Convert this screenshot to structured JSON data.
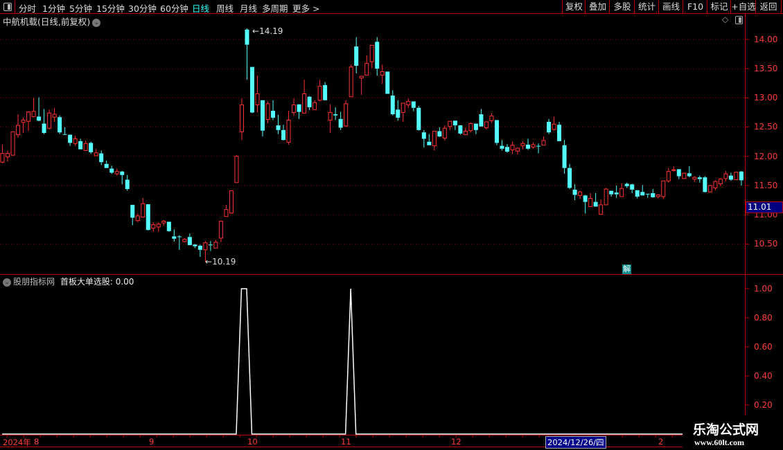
{
  "toolbar": {
    "periods": [
      "分时",
      "1分钟",
      "5分钟",
      "15分钟",
      "30分钟",
      "60分钟",
      "日线",
      "周线",
      "月线",
      "多周期",
      "更多 >"
    ],
    "active_period": "日线",
    "right_buttons": [
      "复权",
      "叠加",
      "多股",
      "统计",
      "画线",
      "F10",
      "标记",
      "+自选",
      "返回"
    ]
  },
  "main": {
    "title": "中航机载(日线,前复权)",
    "high_label": "14.19",
    "low_label": "10.19",
    "current_price": "11.01",
    "badge": "解",
    "price_ticks": [
      "14.00",
      "13.50",
      "13.00",
      "12.50",
      "12.00",
      "11.50",
      "11.00",
      "10.50"
    ]
  },
  "indicator": {
    "source": "股朋指标网",
    "name": "首板大单选股: 0.00",
    "ticks": [
      "1.00",
      "0.80",
      "0.60",
      "0.40",
      "0.20"
    ]
  },
  "date_axis": {
    "labels": [
      "2024年",
      "8",
      "9",
      "10",
      "11",
      "12",
      "2"
    ],
    "highlight": "2024/12/26/四"
  },
  "watermark": {
    "title": "乐淘公式网",
    "url": "www.60lt.com"
  },
  "colors": {
    "up": "#ff3232",
    "down": "#54ffff",
    "grid": "#8b0000",
    "axis": "#c00000",
    "indicator_line": "#ffffff"
  },
  "chart_data": [
    {
      "type": "candlestick",
      "fields": [
        "open",
        "close",
        "high",
        "low"
      ],
      "ylim": [
        10.0,
        14.3
      ],
      "grid": true,
      "candles": [
        [
          11.9,
          12.05,
          12.2,
          11.88
        ],
        [
          11.99,
          12.05,
          12.1,
          11.91
        ],
        [
          12.02,
          12.42,
          12.43,
          12.01
        ],
        [
          12.37,
          12.53,
          12.72,
          12.32
        ],
        [
          12.58,
          12.62,
          12.66,
          12.4
        ],
        [
          12.6,
          12.76,
          12.77,
          12.43
        ],
        [
          12.68,
          12.77,
          13.0,
          12.67
        ],
        [
          12.68,
          12.61,
          13.01,
          12.6
        ],
        [
          12.56,
          12.4,
          12.81,
          12.38
        ],
        [
          12.48,
          12.74,
          12.8,
          12.46
        ],
        [
          12.67,
          12.72,
          12.83,
          12.59
        ],
        [
          12.67,
          12.41,
          12.7,
          12.38
        ],
        [
          12.38,
          12.37,
          12.5,
          12.37
        ],
        [
          12.37,
          12.23,
          12.37,
          12.18
        ],
        [
          12.22,
          12.3,
          12.35,
          12.18
        ],
        [
          12.26,
          12.12,
          12.3,
          12.12
        ],
        [
          12.1,
          12.22,
          12.27,
          12.09
        ],
        [
          12.23,
          12.07,
          12.25,
          12.04
        ],
        [
          12.01,
          12.06,
          12.13,
          12.01
        ],
        [
          12.05,
          11.9,
          12.1,
          11.85
        ],
        [
          11.87,
          11.8,
          11.93,
          11.8
        ],
        [
          11.79,
          11.72,
          11.84,
          11.7
        ],
        [
          11.7,
          11.74,
          11.79,
          11.67
        ],
        [
          11.74,
          11.68,
          11.75,
          11.52
        ],
        [
          11.6,
          11.44,
          11.68,
          11.41
        ],
        [
          11.17,
          10.95,
          11.17,
          10.82
        ],
        [
          10.9,
          10.98,
          11.02,
          10.87
        ],
        [
          10.96,
          11.19,
          11.29,
          10.96
        ],
        [
          11.18,
          10.74,
          11.18,
          10.73
        ],
        [
          10.77,
          10.83,
          10.87,
          10.71
        ],
        [
          10.79,
          10.84,
          10.87,
          10.71
        ],
        [
          10.86,
          10.89,
          10.91,
          10.82
        ],
        [
          10.88,
          10.72,
          10.88,
          10.71
        ],
        [
          10.63,
          10.59,
          10.75,
          10.54
        ],
        [
          10.63,
          10.62,
          10.65,
          10.4
        ],
        [
          10.54,
          10.58,
          10.6,
          10.53
        ],
        [
          10.62,
          10.48,
          10.68,
          10.48
        ],
        [
          10.49,
          10.46,
          10.5,
          10.43
        ],
        [
          10.47,
          10.4,
          10.49,
          10.28
        ],
        [
          10.4,
          10.52,
          10.55,
          10.19
        ],
        [
          10.49,
          10.48,
          10.55,
          10.38
        ],
        [
          10.43,
          10.53,
          10.57,
          10.43
        ],
        [
          10.6,
          10.89,
          10.89,
          10.53
        ],
        [
          10.97,
          11.09,
          11.17,
          10.97
        ],
        [
          11.03,
          11.41,
          11.41,
          11.02
        ],
        [
          11.55,
          12.0,
          12.02,
          11.55
        ],
        [
          12.42,
          12.88,
          12.99,
          12.28
        ],
        [
          14.17,
          13.91,
          14.19,
          13.31
        ],
        [
          13.53,
          12.75,
          13.53,
          12.74
        ],
        [
          12.88,
          13.07,
          13.38,
          12.75
        ],
        [
          12.96,
          12.44,
          12.96,
          12.34
        ],
        [
          12.63,
          12.9,
          12.94,
          12.57
        ],
        [
          12.78,
          12.66,
          12.96,
          12.62
        ],
        [
          12.53,
          12.45,
          12.71,
          12.38
        ],
        [
          12.45,
          12.28,
          12.54,
          12.27
        ],
        [
          12.24,
          12.62,
          12.78,
          12.2
        ],
        [
          12.75,
          12.88,
          12.99,
          12.69
        ],
        [
          12.89,
          12.76,
          12.89,
          12.64
        ],
        [
          12.74,
          13.07,
          13.31,
          12.73
        ],
        [
          13.02,
          12.84,
          13.03,
          12.79
        ],
        [
          12.8,
          12.92,
          12.96,
          12.8
        ],
        [
          12.96,
          13.2,
          13.31,
          12.94
        ],
        [
          13.22,
          12.96,
          13.27,
          12.96
        ],
        [
          12.62,
          12.75,
          12.89,
          12.4
        ],
        [
          12.72,
          12.7,
          12.84,
          12.62
        ],
        [
          12.64,
          12.49,
          12.76,
          12.45
        ],
        [
          12.52,
          12.9,
          12.96,
          12.5
        ],
        [
          13.02,
          13.53,
          13.57,
          13.02
        ],
        [
          13.88,
          13.55,
          14.04,
          13.42
        ],
        [
          13.34,
          13.37,
          13.38,
          13.05
        ],
        [
          13.39,
          13.59,
          13.73,
          13.39
        ],
        [
          13.62,
          13.9,
          13.9,
          13.51
        ],
        [
          13.96,
          13.5,
          14.04,
          13.38
        ],
        [
          13.39,
          13.45,
          13.57,
          13.24
        ],
        [
          13.45,
          13.07,
          13.45,
          13.07
        ],
        [
          13.04,
          12.72,
          13.13,
          12.7
        ],
        [
          12.8,
          12.66,
          12.96,
          12.61
        ],
        [
          12.75,
          12.91,
          12.91,
          12.59
        ],
        [
          12.88,
          12.94,
          12.99,
          12.83
        ],
        [
          12.94,
          12.83,
          12.94,
          12.77
        ],
        [
          12.83,
          12.45,
          12.86,
          12.44
        ],
        [
          12.41,
          12.3,
          12.45,
          12.15
        ],
        [
          12.25,
          12.19,
          12.38,
          12.19
        ],
        [
          12.18,
          12.43,
          12.43,
          12.1
        ],
        [
          12.43,
          12.34,
          12.5,
          12.33
        ],
        [
          12.31,
          12.48,
          12.53,
          12.27
        ],
        [
          12.51,
          12.6,
          12.6,
          12.45
        ],
        [
          12.61,
          12.53,
          12.61,
          12.45
        ],
        [
          12.53,
          12.39,
          12.53,
          12.37
        ],
        [
          12.37,
          12.43,
          12.49,
          12.37
        ],
        [
          12.44,
          12.56,
          12.58,
          12.41
        ],
        [
          12.56,
          12.45,
          12.56,
          12.38
        ],
        [
          12.72,
          12.51,
          12.81,
          12.51
        ],
        [
          12.49,
          12.59,
          12.6,
          12.46
        ],
        [
          12.61,
          12.69,
          12.74,
          12.57
        ],
        [
          12.62,
          12.23,
          12.62,
          12.19
        ],
        [
          12.18,
          12.13,
          12.28,
          12.1
        ],
        [
          12.16,
          12.08,
          12.21,
          12.06
        ],
        [
          12.11,
          12.19,
          12.25,
          12.04
        ],
        [
          12.09,
          12.14,
          12.15,
          12.03
        ],
        [
          12.18,
          12.22,
          12.26,
          12.12
        ],
        [
          12.2,
          12.13,
          12.3,
          12.11
        ],
        [
          12.16,
          12.2,
          12.24,
          12.13
        ],
        [
          12.18,
          12.17,
          12.22,
          12.05
        ],
        [
          12.19,
          12.27,
          12.34,
          12.19
        ],
        [
          12.59,
          12.41,
          12.64,
          12.38
        ],
        [
          12.46,
          12.55,
          12.68,
          12.44
        ],
        [
          12.54,
          12.26,
          12.59,
          12.26
        ],
        [
          12.19,
          11.8,
          12.28,
          11.7
        ],
        [
          11.8,
          11.46,
          11.87,
          11.44
        ],
        [
          11.43,
          11.34,
          11.52,
          11.25
        ],
        [
          11.33,
          11.39,
          11.41,
          11.27
        ],
        [
          11.33,
          11.22,
          11.34,
          11.02
        ],
        [
          11.14,
          11.28,
          11.37,
          11.14
        ],
        [
          11.22,
          11.14,
          11.37,
          11.14
        ],
        [
          11.01,
          11.17,
          11.26,
          11.0
        ],
        [
          11.17,
          11.44,
          11.46,
          11.17
        ],
        [
          11.41,
          11.35,
          11.41,
          11.31
        ],
        [
          11.38,
          11.35,
          11.5,
          11.29
        ],
        [
          11.31,
          11.45,
          11.54,
          11.31
        ],
        [
          11.53,
          11.49,
          11.55,
          11.46
        ],
        [
          11.52,
          11.43,
          11.53,
          11.37
        ],
        [
          11.42,
          11.31,
          11.42,
          11.28
        ],
        [
          11.39,
          11.33,
          11.51,
          11.33
        ],
        [
          11.36,
          11.35,
          11.36,
          11.29
        ],
        [
          11.37,
          11.3,
          11.44,
          11.29
        ],
        [
          11.31,
          11.34,
          11.35,
          11.28
        ],
        [
          11.31,
          11.58,
          11.58,
          11.27
        ],
        [
          11.58,
          11.74,
          11.8,
          11.55
        ],
        [
          11.76,
          11.77,
          11.83,
          11.74
        ],
        [
          11.78,
          11.66,
          11.78,
          11.61
        ],
        [
          11.62,
          11.71,
          11.72,
          11.61
        ],
        [
          11.71,
          11.66,
          11.83,
          11.64
        ],
        [
          11.61,
          11.64,
          11.66,
          11.56
        ],
        [
          11.64,
          11.61,
          11.67,
          11.55
        ],
        [
          11.64,
          11.39,
          11.66,
          11.38
        ],
        [
          11.39,
          11.5,
          11.51,
          11.38
        ],
        [
          11.46,
          11.57,
          11.59,
          11.42
        ],
        [
          11.53,
          11.61,
          11.63,
          11.49
        ],
        [
          11.62,
          11.7,
          11.75,
          11.57
        ],
        [
          11.67,
          11.6,
          11.72,
          11.58
        ],
        [
          11.6,
          11.73,
          11.73,
          11.6
        ],
        [
          11.74,
          11.59,
          11.75,
          11.5
        ]
      ]
    },
    {
      "type": "line",
      "name": "首板大单选股",
      "ylim": [
        0,
        1.0
      ],
      "signal_indices": [
        46,
        47,
        67
      ],
      "values_default": 0
    }
  ]
}
